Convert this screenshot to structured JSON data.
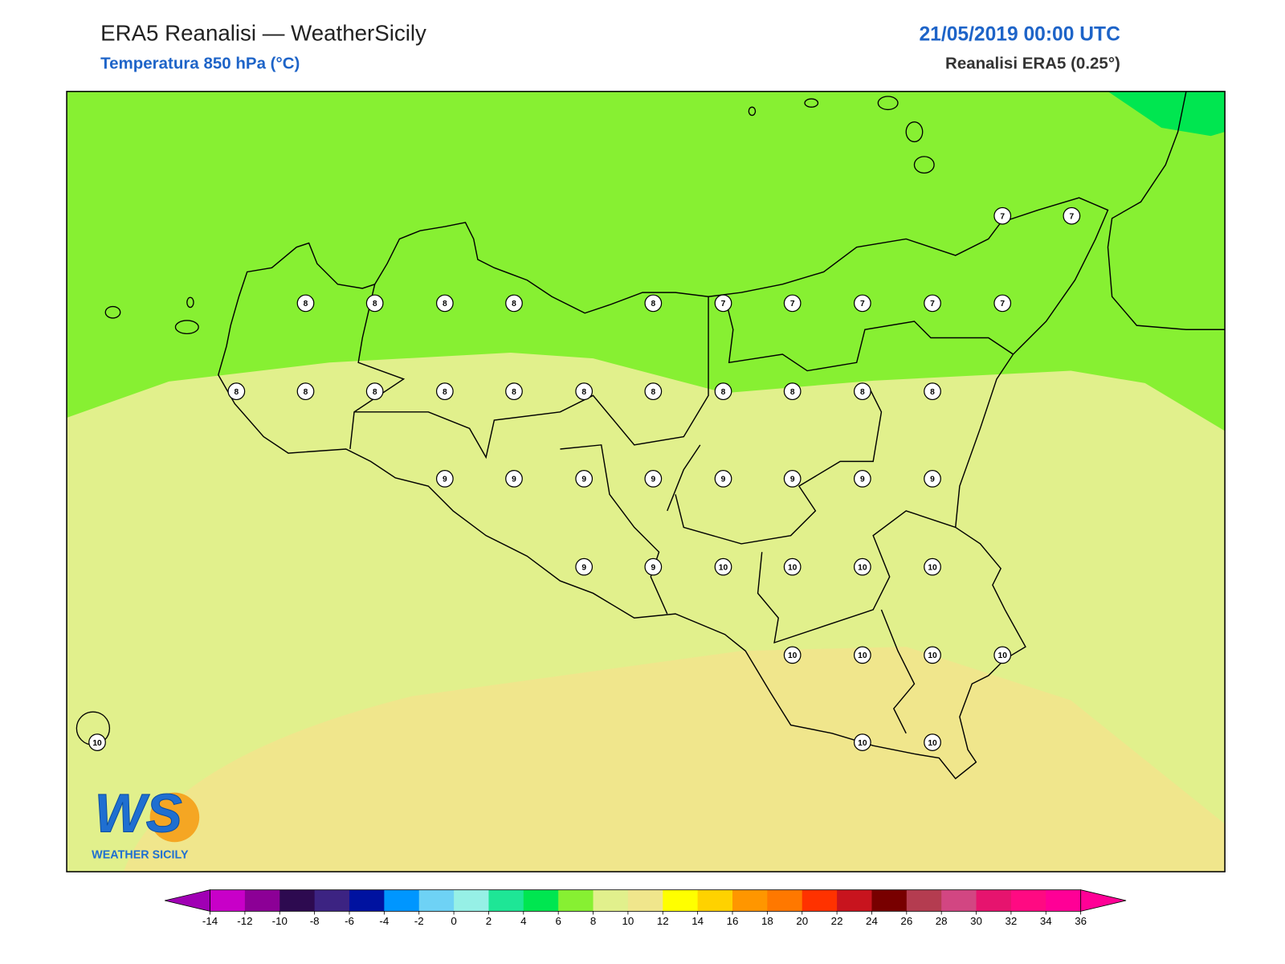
{
  "header": {
    "title": "ERA5 Reanalisi — WeatherSicily",
    "subtitle": "Temperatura 850 hPa (°C)",
    "datetime": "21/05/2019 00:00 UTC",
    "source": "Reanalisi ERA5 (0.25°)"
  },
  "station_values": [
    [
      7,
      7
    ],
    [
      8,
      8,
      8,
      8,
      8,
      7,
      7,
      7,
      7,
      7
    ],
    [
      8,
      8,
      8,
      8,
      8,
      8,
      8,
      8,
      8,
      8,
      8
    ],
    [
      9,
      9,
      9,
      9,
      9,
      9,
      9,
      9
    ],
    [
      9,
      9,
      10,
      10,
      10,
      10
    ],
    [
      10,
      10,
      10,
      10
    ],
    [
      10,
      10,
      10
    ]
  ],
  "colorbar": {
    "ticks": [
      -14,
      -12,
      -10,
      -8,
      -6,
      -4,
      -2,
      0,
      2,
      4,
      6,
      8,
      10,
      12,
      14,
      16,
      18,
      20,
      22,
      24,
      26,
      28,
      30,
      32,
      34,
      36
    ],
    "colors": [
      "#c800c8",
      "#8c0096",
      "#2d0a50",
      "#3c2382",
      "#0012a0",
      "#0096ff",
      "#6ed2f5",
      "#96f0e6",
      "#1ee696",
      "#00e650",
      "#87f032",
      "#e1f08c",
      "#f0e68c",
      "#ffff00",
      "#ffd200",
      "#ff9600",
      "#ff7800",
      "#ff3200",
      "#c8141e",
      "#780000",
      "#b43c50",
      "#d24682",
      "#e6146e",
      "#ff0a82",
      "#ff0096"
    ],
    "under": "#a000b4",
    "over": "#ff0096"
  },
  "logo": {
    "mark": "WS",
    "name": "WEATHER SICILY"
  }
}
